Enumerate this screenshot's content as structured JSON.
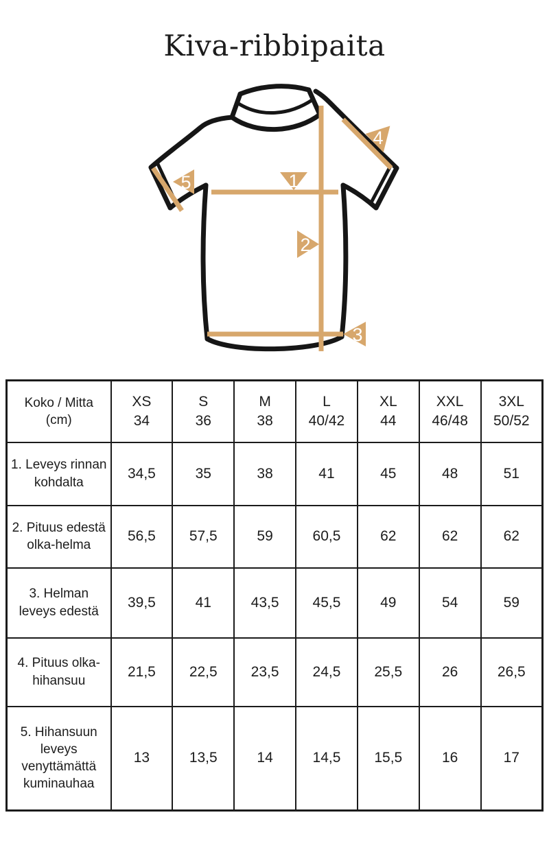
{
  "page": {
    "title": "Kiva-ribbipaita"
  },
  "colors": {
    "accent": "#D7A76C",
    "outline": "#161616"
  },
  "diagram": {
    "description": "t-shirt front with numbered measurement lines",
    "markers": [
      "1",
      "2",
      "3",
      "4",
      "5"
    ]
  },
  "table": {
    "header": {
      "corner": {
        "line1": "Koko / Mitta",
        "line2": "(cm)"
      },
      "sizes": [
        {
          "name": "XS",
          "eu": "34"
        },
        {
          "name": "S",
          "eu": "36"
        },
        {
          "name": "M",
          "eu": "38"
        },
        {
          "name": "L",
          "eu": "40/42"
        },
        {
          "name": "XL",
          "eu": "44"
        },
        {
          "name": "XXL",
          "eu": "46/48"
        },
        {
          "name": "3XL",
          "eu": "50/52"
        }
      ]
    },
    "rows": [
      {
        "label": "1. Leveys rinnan kohdalta",
        "values": [
          "34,5",
          "35",
          "38",
          "41",
          "45",
          "48",
          "51"
        ]
      },
      {
        "label": "2. Pituus edestä olka-helma",
        "values": [
          "56,5",
          "57,5",
          "59",
          "60,5",
          "62",
          "62",
          "62"
        ]
      },
      {
        "label": "3. Helman leveys edestä",
        "values": [
          "39,5",
          "41",
          "43,5",
          "45,5",
          "49",
          "54",
          "59"
        ]
      },
      {
        "label": "4. Pituus olka-hihansuu",
        "values": [
          "21,5",
          "22,5",
          "23,5",
          "24,5",
          "25,5",
          "26",
          "26,5"
        ]
      },
      {
        "label": "5. Hihansuun leveys venyttämättä kuminauhaa",
        "values": [
          "13",
          "13,5",
          "14",
          "14,5",
          "15,5",
          "16",
          "17"
        ]
      }
    ]
  }
}
